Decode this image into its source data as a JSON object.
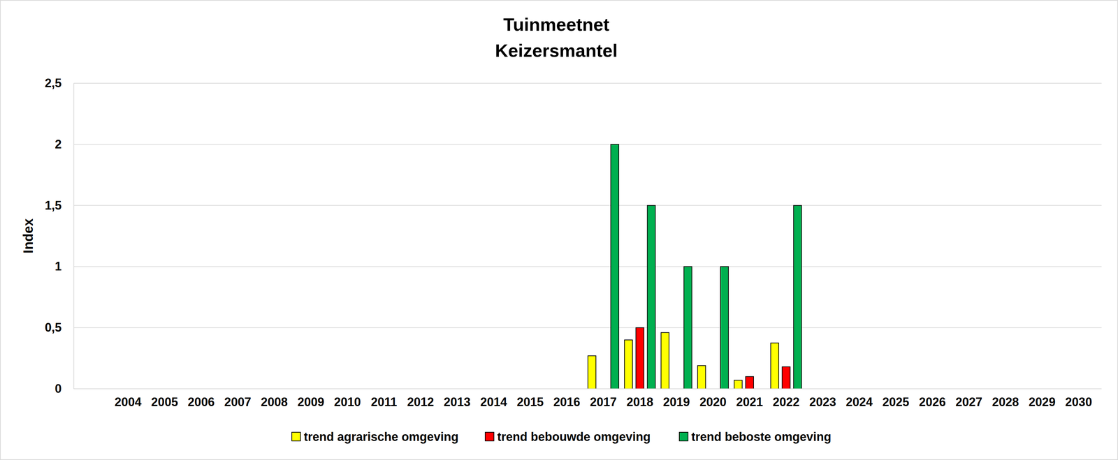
{
  "chart_data": {
    "type": "bar",
    "title": "Tuinmeetnet",
    "subtitle": "Keizersmantel",
    "y_label": "Index",
    "categories": [
      "2004",
      "2005",
      "2006",
      "2007",
      "2008",
      "2009",
      "2010",
      "2011",
      "2012",
      "2013",
      "2014",
      "2015",
      "2016",
      "2017",
      "2018",
      "2019",
      "2020",
      "2021",
      "2022",
      "2023",
      "2024",
      "2025",
      "2026",
      "2027",
      "2028",
      "2029",
      "2030"
    ],
    "series": [
      {
        "name": "trend agrarische omgeving",
        "color": "#ffff00",
        "values": [
          null,
          null,
          null,
          null,
          null,
          null,
          null,
          null,
          null,
          null,
          null,
          null,
          null,
          0.27,
          0.4,
          0.46,
          0.19,
          0.07,
          0.375,
          null,
          null,
          null,
          null,
          null,
          null,
          null,
          null
        ]
      },
      {
        "name": "trend bebouwde omgeving",
        "color": "#ff0000",
        "values": [
          null,
          null,
          null,
          null,
          null,
          null,
          null,
          null,
          null,
          null,
          null,
          null,
          null,
          null,
          0.5,
          null,
          null,
          0.1,
          0.18,
          null,
          null,
          null,
          null,
          null,
          null,
          null,
          null
        ]
      },
      {
        "name": "trend beboste omgeving",
        "color": "#00b050",
        "values": [
          null,
          null,
          null,
          null,
          null,
          null,
          null,
          null,
          null,
          null,
          null,
          null,
          null,
          2,
          1.5,
          1,
          1,
          null,
          1.5,
          null,
          null,
          null,
          null,
          null,
          null,
          null,
          null
        ]
      }
    ],
    "ylim": [
      0,
      2.5
    ],
    "yticks": [
      0,
      {
        "value": 0.5,
        "label": "0,5"
      },
      1,
      {
        "value": 1.5,
        "label": "1,5"
      },
      2,
      {
        "value": 2.5,
        "label": "2,5"
      }
    ],
    "grid": true,
    "legend": "bottom"
  }
}
